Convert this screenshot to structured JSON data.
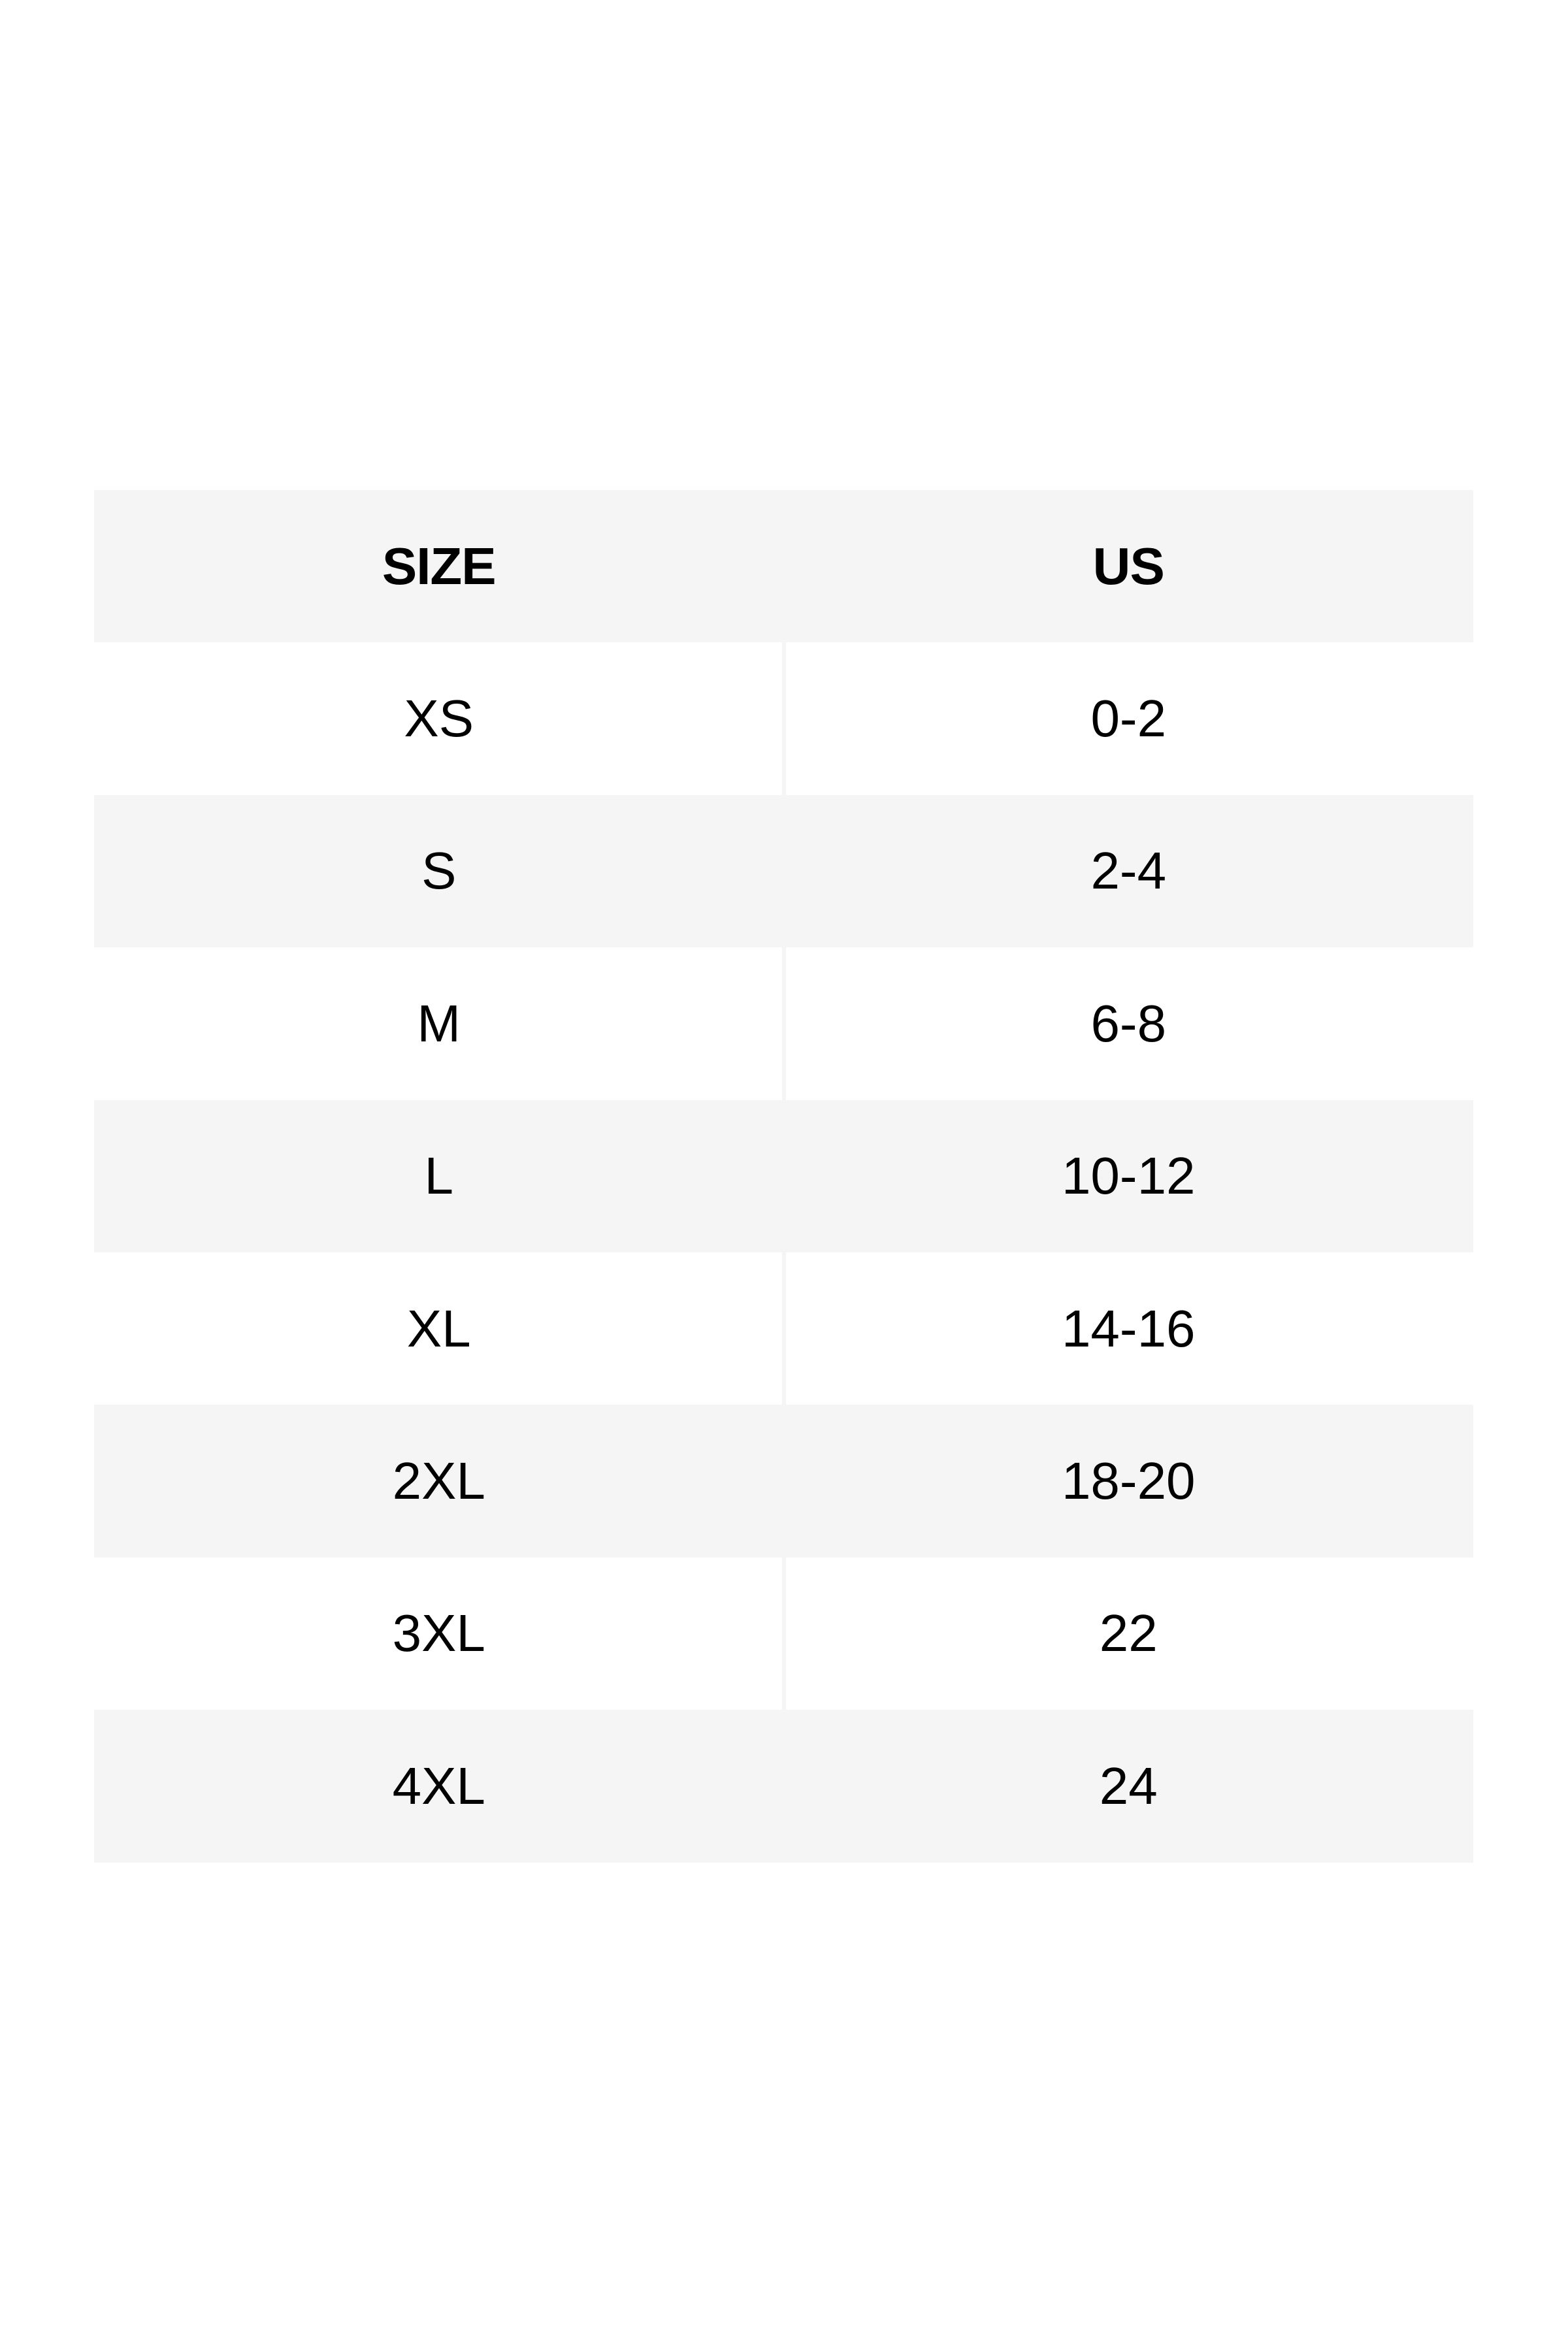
{
  "colors": {
    "row_shade": "#f5f5f5",
    "text": "#000000",
    "background": "#ffffff"
  },
  "table": {
    "headers": [
      "SIZE",
      "US"
    ],
    "rows": [
      [
        "XS",
        "0-2"
      ],
      [
        "S",
        "2-4"
      ],
      [
        "M",
        "6-8"
      ],
      [
        "L",
        "10-12"
      ],
      [
        "XL",
        "14-16"
      ],
      [
        "2XL",
        "18-20"
      ],
      [
        "3XL",
        "22"
      ],
      [
        "4XL",
        "24"
      ]
    ]
  }
}
